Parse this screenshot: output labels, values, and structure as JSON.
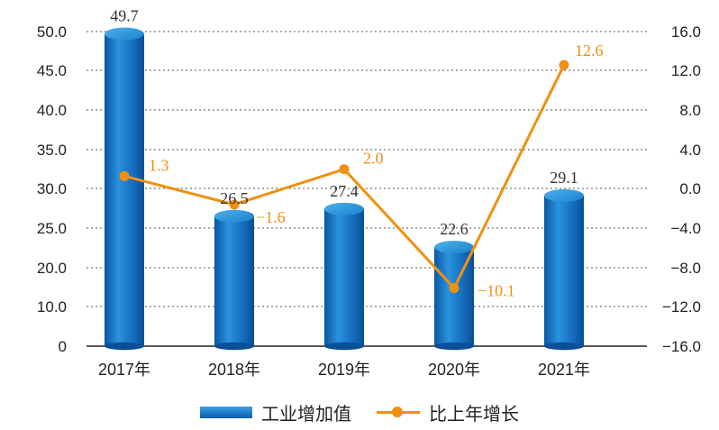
{
  "chart_data": {
    "type": "bar+line",
    "categories": [
      "2017年",
      "2018年",
      "2019年",
      "2020年",
      "2021年"
    ],
    "series": [
      {
        "name": "工业增加值",
        "type": "bar",
        "axis": "left",
        "values": [
          49.7,
          26.5,
          27.4,
          22.6,
          29.1
        ],
        "labels": [
          "49.7",
          "26.5",
          "27.4",
          "22.6",
          "29.1"
        ]
      },
      {
        "name": "比上年增长",
        "type": "line",
        "axis": "right",
        "values": [
          1.3,
          -1.6,
          2.0,
          -10.1,
          12.6
        ],
        "labels": [
          "1.3",
          "−1.6",
          "2.0",
          "−10.1",
          "12.6"
        ]
      }
    ],
    "y_left": {
      "ticks": [
        0,
        10,
        20,
        25,
        30,
        35,
        40,
        45,
        50
      ],
      "tick_labels": [
        "0",
        "10.0",
        "20.0",
        "25.0",
        "30.0",
        "35.0",
        "40.0",
        "45.0",
        "50.0"
      ]
    },
    "y_right": {
      "ticks": [
        -16,
        -12,
        -8,
        -4,
        0,
        4,
        8,
        12,
        16
      ],
      "tick_labels": [
        "−16.0",
        "−12.0",
        "−8.0",
        "−4.0",
        "0.0",
        "4.0",
        "8.0",
        "12.0",
        "16.0"
      ]
    },
    "grid": "dotted-horizontal",
    "legend": "bottom-center",
    "colors": {
      "bar_top": "#3aa0e0",
      "bar_bottom": "#0a5fae",
      "line": "#f0900f",
      "grid": "#555555",
      "label": "#333333"
    }
  }
}
